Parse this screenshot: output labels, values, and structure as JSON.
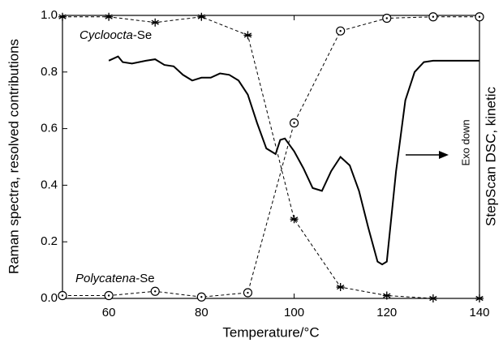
{
  "chart_data": {
    "type": "line",
    "x_label": "Temperature/°C",
    "y_label": "Raman spectra, resolved contributions",
    "y2_label": "StepScan DSC,  kinetic",
    "annotation": "Exo down",
    "xlim": [
      50,
      140
    ],
    "xticks": [
      60,
      80,
      100,
      120,
      140
    ],
    "ylim": [
      0,
      1
    ],
    "yticks": [
      {
        "value": 0,
        "label": "0.0"
      },
      0.2,
      0.4,
      0.6,
      0.8,
      {
        "value": 1,
        "label": "1.0"
      }
    ],
    "series": [
      {
        "name": "Cycloocta-Se",
        "color": "#000000",
        "marker": "star",
        "dashed": true,
        "x": [
          50,
          60,
          70,
          80,
          90,
          100,
          110,
          120,
          130,
          140
        ],
        "values": [
          0.995,
          0.995,
          0.975,
          0.995,
          0.93,
          0.28,
          0.04,
          0.01,
          0.0,
          0.0
        ]
      },
      {
        "name": "Polycatena-Se",
        "color": "#000000",
        "marker": "circle",
        "dashed": true,
        "x": [
          50,
          60,
          70,
          80,
          90,
          100,
          110,
          120,
          130,
          140
        ],
        "values": [
          0.01,
          0.01,
          0.025,
          0.005,
          0.02,
          0.62,
          0.945,
          0.99,
          0.995,
          0.995
        ]
      },
      {
        "color": "#000000",
        "marker": "none",
        "dashed": false,
        "x": [
          60,
          62,
          63,
          65,
          68,
          70,
          72,
          74,
          76,
          78,
          80,
          82,
          84,
          86,
          88,
          90,
          92,
          94,
          96,
          97,
          98,
          100,
          102,
          104,
          106,
          108,
          110,
          112,
          114,
          116,
          118,
          119,
          120,
          122,
          124,
          126,
          128,
          130,
          135,
          140
        ],
        "values": [
          0.84,
          0.855,
          0.835,
          0.83,
          0.84,
          0.845,
          0.825,
          0.82,
          0.79,
          0.77,
          0.78,
          0.78,
          0.795,
          0.79,
          0.77,
          0.72,
          0.62,
          0.53,
          0.51,
          0.56,
          0.565,
          0.52,
          0.46,
          0.39,
          0.38,
          0.45,
          0.5,
          0.47,
          0.38,
          0.25,
          0.13,
          0.12,
          0.13,
          0.45,
          0.7,
          0.8,
          0.835,
          0.84,
          0.84,
          0.84
        ]
      }
    ]
  }
}
